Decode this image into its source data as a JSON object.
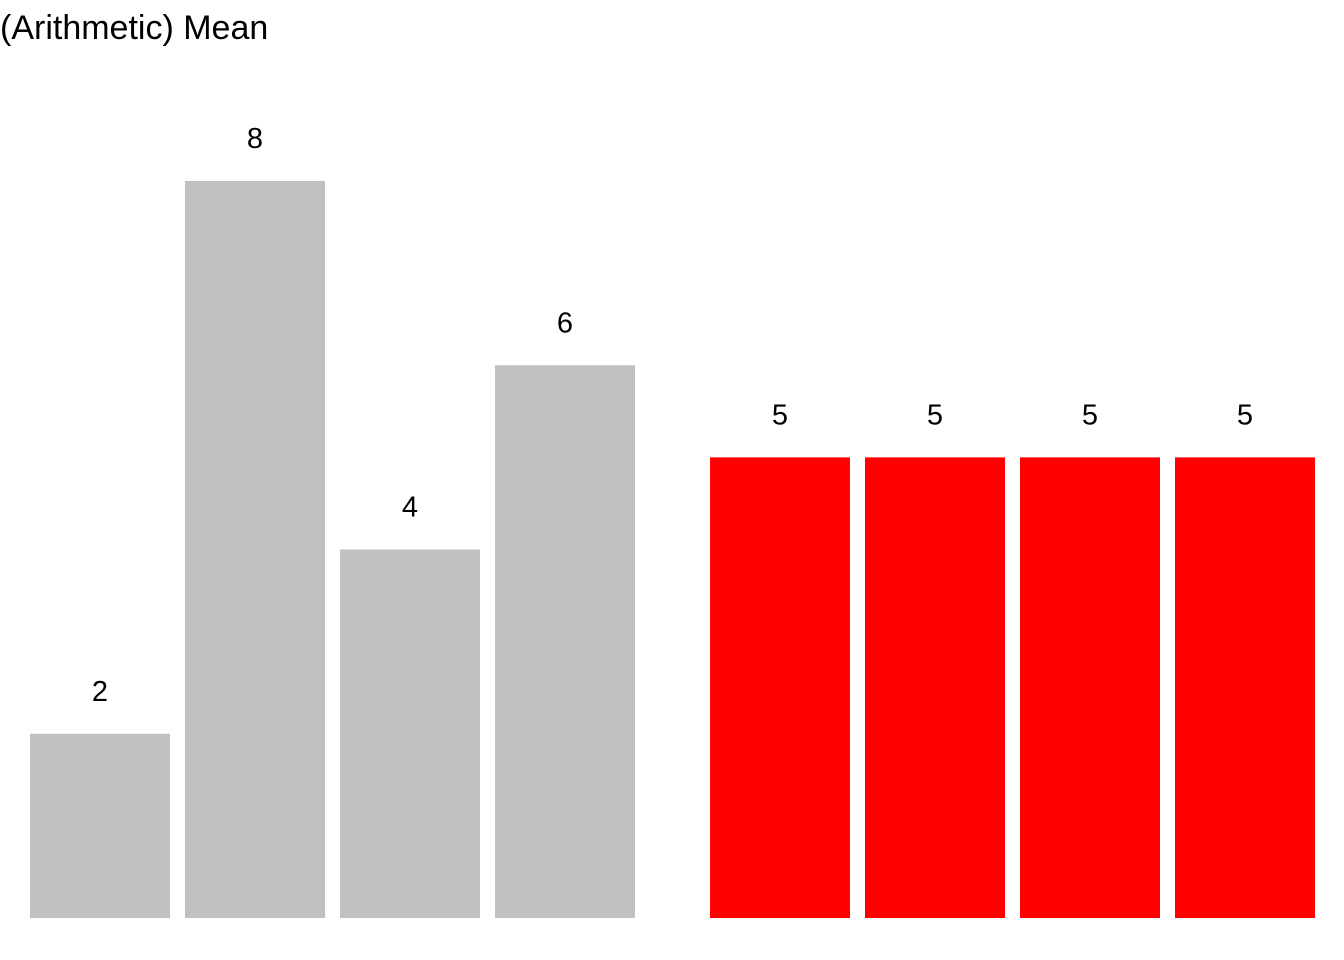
{
  "chart_data": {
    "type": "bar",
    "title": "(Arithmetic) Mean",
    "xlabel": "",
    "ylabel": "",
    "ylim": [
      0,
      8
    ],
    "grid": false,
    "legend": "none",
    "groups": [
      {
        "values": [
          2,
          8,
          4,
          6
        ],
        "labels": [
          "2",
          "8",
          "4",
          "6"
        ],
        "color": "#C0C0C0"
      },
      {
        "values": [
          5,
          5,
          5,
          5
        ],
        "labels": [
          "5",
          "5",
          "5",
          "5"
        ],
        "color": "#FF0000"
      }
    ]
  }
}
